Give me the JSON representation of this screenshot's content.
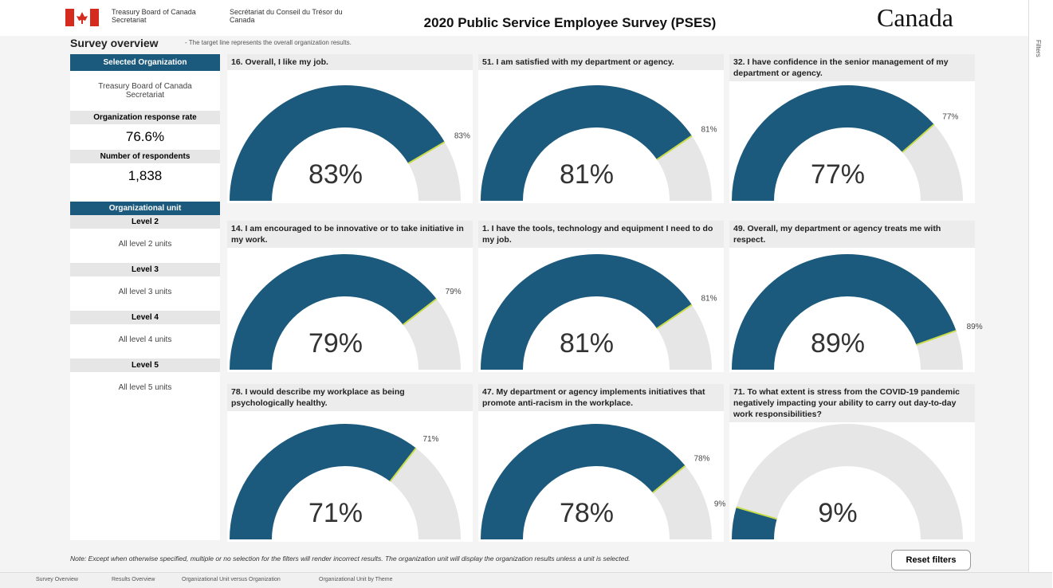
{
  "header": {
    "org_en": "Treasury Board of Canada Secretariat",
    "org_fr": "Secrétariat du Conseil du Trésor du Canada",
    "title": "2020 Public Service Employee Survey (PSES)",
    "wordmark": "Canada"
  },
  "overview": {
    "title": "Survey overview",
    "subtitle": "- The target line represents the overall organization results."
  },
  "sidebar": {
    "selected_org_label": "Selected Organization",
    "selected_org": "Treasury Board of Canada Secretariat",
    "response_rate_label": "Organization response rate",
    "response_rate": "76.6%",
    "respondents_label": "Number of respondents",
    "respondents": "1,838",
    "unit_label": "Organizational unit",
    "levels": [
      {
        "label": "Level 2",
        "value": "All level 2 units"
      },
      {
        "label": "Level 3",
        "value": "All level 3 units"
      },
      {
        "label": "Level 4",
        "value": "All level 4 units"
      },
      {
        "label": "Level 5",
        "value": "All level 5 units"
      }
    ]
  },
  "chart_data": [
    {
      "type": "gauge",
      "title": "16. Overall, I like my job.",
      "values": [
        83
      ],
      "value_labels": [
        "83%"
      ],
      "target": 83,
      "target_label": "83%",
      "ylim": [
        0,
        100
      ],
      "color": "#1b5a7c"
    },
    {
      "type": "gauge",
      "title": "51. I am satisfied with my department or agency.",
      "values": [
        81
      ],
      "value_labels": [
        "81%"
      ],
      "target": 81,
      "target_label": "81%",
      "ylim": [
        0,
        100
      ],
      "color": "#1b5a7c"
    },
    {
      "type": "gauge",
      "title": "32. I have confidence in the senior management of my department or agency.",
      "values": [
        77
      ],
      "value_labels": [
        "77%"
      ],
      "target": 77,
      "target_label": "77%",
      "ylim": [
        0,
        100
      ],
      "color": "#1b5a7c"
    },
    {
      "type": "gauge",
      "title": "14. I am encouraged to be innovative or to take initiative in my work.",
      "values": [
        79
      ],
      "value_labels": [
        "79%"
      ],
      "target": 79,
      "target_label": "79%",
      "ylim": [
        0,
        100
      ],
      "color": "#1b5a7c"
    },
    {
      "type": "gauge",
      "title": "1. I have the tools, technology and equipment I need to do my job.",
      "values": [
        81
      ],
      "value_labels": [
        "81%"
      ],
      "target": 81,
      "target_label": "81%",
      "ylim": [
        0,
        100
      ],
      "color": "#1b5a7c"
    },
    {
      "type": "gauge",
      "title": "49. Overall, my department or agency treats me with respect.",
      "values": [
        89
      ],
      "value_labels": [
        "89%"
      ],
      "target": 89,
      "target_label": "89%",
      "ylim": [
        0,
        100
      ],
      "color": "#1b5a7c"
    },
    {
      "type": "gauge",
      "title": "78. I would describe my workplace as being psychologically healthy.",
      "values": [
        71
      ],
      "value_labels": [
        "71%"
      ],
      "target": 71,
      "target_label": "71%",
      "ylim": [
        0,
        100
      ],
      "color": "#1b5a7c"
    },
    {
      "type": "gauge",
      "title": "47. My department or agency implements initiatives that promote anti-racism in the workplace.",
      "values": [
        78
      ],
      "value_labels": [
        "78%"
      ],
      "target": 78,
      "target_label": "78%",
      "ylim": [
        0,
        100
      ],
      "color": "#1b5a7c"
    },
    {
      "type": "gauge",
      "title": "71. To what extent is stress from the COVID-19 pandemic negatively impacting your ability to carry out day-to-day work responsibilities?",
      "values": [
        9
      ],
      "value_labels": [
        "9%"
      ],
      "target": 9,
      "target_label": "9%",
      "ylim": [
        0,
        100
      ],
      "color": "#1b5a7c"
    }
  ],
  "note": "Note: Except when otherwise specified, multiple or no selection for the filters will render incorrect results. The organization unit will display the organization results unless a unit is selected.",
  "reset_button": "Reset filters",
  "filters_pane": "Filters",
  "tabs": [
    "Survey Overview",
    "Results Overview",
    "Organizational Unit versus Organization",
    "Organizational Unit by Theme"
  ]
}
